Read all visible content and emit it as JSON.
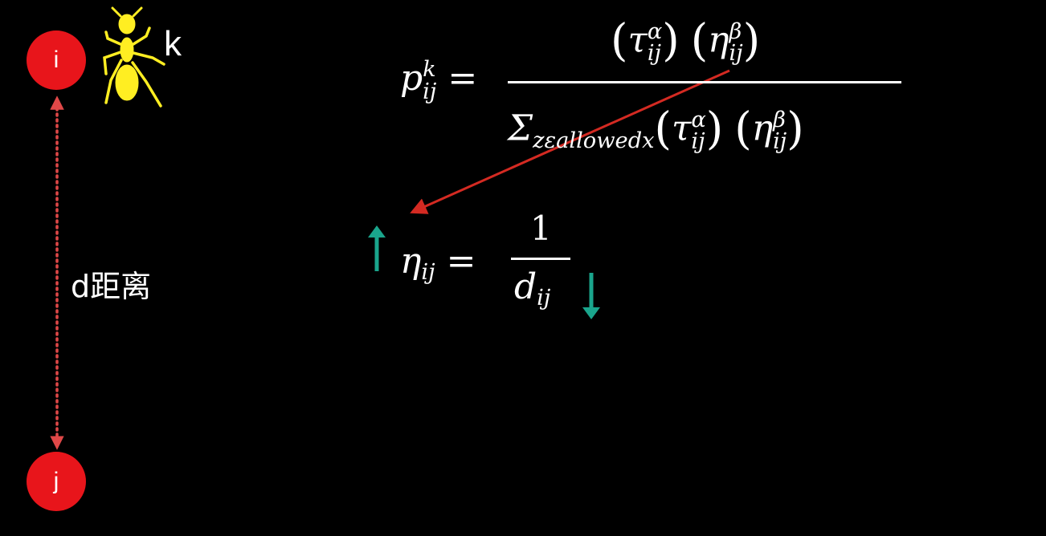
{
  "nodes": {
    "i": "i",
    "j": "j"
  },
  "ant": {
    "label": "k"
  },
  "distance": {
    "label": "d距离"
  },
  "formula_p": {
    "lhs_base": "p",
    "lhs_sup": "k",
    "lhs_sub": "ij",
    "equals": "=",
    "tau": "τ",
    "eta": "η",
    "alpha": "α",
    "beta": "β",
    "sub": "ij",
    "sigma": "Σ",
    "sigma_sub": "zεallowedx",
    "lparen": "(",
    "rparen": ")"
  },
  "formula_eta": {
    "lhs": "η",
    "lhs_sub": "ij",
    "equals": "=",
    "numerator": "1",
    "den_base": "d",
    "den_sub": "ij"
  },
  "colors": {
    "node": "#e8151b",
    "dotted_arrow": "#e04848",
    "pointer_arrow": "#d42a22",
    "trend_arrows": "#1aa58c",
    "ant": "#ffee22"
  },
  "icons": {
    "ant": "ant-icon",
    "up": "arrow-up-icon",
    "down": "arrow-down-icon"
  }
}
